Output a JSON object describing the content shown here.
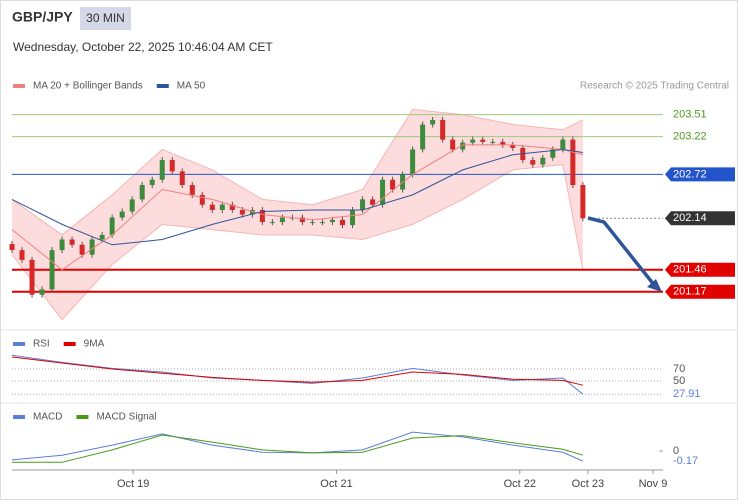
{
  "header": {
    "symbol": "GBP/JPY",
    "timeframe": "30 MIN",
    "datetime": "Wednesday, October 22, 2025 10:46:04 AM CET",
    "credit": "Research © 2025 Trading Central"
  },
  "chart_data": [
    {
      "type": "candlestick",
      "xlim": [
        0,
        65
      ],
      "ylim": [
        200.69,
        203.77
      ],
      "up_color": "#3d8b3d",
      "down_color": "#d62828",
      "open": [
        201.8,
        201.72,
        201.59,
        201.13,
        201.2,
        201.72,
        201.86,
        201.79,
        201.66,
        201.86,
        201.92,
        202.15,
        202.23,
        202.39,
        202.58,
        202.65,
        202.91,
        202.76,
        202.58,
        202.45,
        202.32,
        202.25,
        202.32,
        202.25,
        202.19,
        202.25,
        202.09,
        202.09,
        202.15,
        202.15,
        202.09,
        202.09,
        202.09,
        202.12,
        202.05,
        202.25,
        202.39,
        202.32,
        202.65,
        202.52,
        202.72,
        203.05,
        203.38,
        203.44,
        203.18,
        203.05,
        203.14,
        203.18,
        203.15,
        203.15,
        203.11,
        203.07,
        202.91,
        202.85,
        202.94,
        203.05,
        203.18,
        202.58
      ],
      "close": [
        201.72,
        201.59,
        201.13,
        201.2,
        201.72,
        201.86,
        201.79,
        201.66,
        201.86,
        201.92,
        202.15,
        202.23,
        202.39,
        202.58,
        202.65,
        202.91,
        202.76,
        202.58,
        202.45,
        202.32,
        202.25,
        202.32,
        202.25,
        202.19,
        202.25,
        202.09,
        202.09,
        202.15,
        202.15,
        202.09,
        202.09,
        202.09,
        202.12,
        202.05,
        202.25,
        202.39,
        202.32,
        202.65,
        202.52,
        202.72,
        203.05,
        203.38,
        203.44,
        203.18,
        203.05,
        203.14,
        203.18,
        203.15,
        203.15,
        203.11,
        203.07,
        202.91,
        202.85,
        202.94,
        203.05,
        203.18,
        202.58,
        202.14
      ],
      "series": [
        {
          "name": "MA 20 + Bollinger Bands",
          "color": "#f08080",
          "x": [
            0,
            5,
            10,
            15,
            20,
            25,
            30,
            35,
            40,
            45,
            50,
            55,
            57
          ],
          "values": [
            201.99,
            201.46,
            201.92,
            202.52,
            202.39,
            202.19,
            202.12,
            202.19,
            202.72,
            203.11,
            203.11,
            203.05,
            202.98
          ],
          "upper": [
            202.39,
            201.92,
            202.45,
            203.05,
            202.78,
            202.39,
            202.32,
            202.52,
            203.58,
            203.51,
            203.38,
            203.31,
            203.44
          ],
          "lower": [
            201.66,
            200.8,
            201.53,
            202.06,
            201.99,
            201.92,
            201.92,
            201.86,
            202.06,
            202.39,
            202.78,
            202.85,
            201.46
          ]
        },
        {
          "name": "MA 50",
          "color": "#2e5597",
          "x": [
            0,
            5,
            10,
            15,
            20,
            25,
            30,
            35,
            40,
            45,
            50,
            55,
            57
          ],
          "values": [
            202.39,
            202.06,
            201.79,
            201.86,
            202.06,
            202.23,
            202.25,
            202.25,
            202.45,
            202.78,
            202.98,
            203.05,
            203.01
          ]
        }
      ],
      "levels": [
        {
          "value": 203.51,
          "color": "#9ccc7a",
          "box": false
        },
        {
          "value": 203.22,
          "color": "#9ccc7a",
          "box": false
        },
        {
          "value": 202.72,
          "color": "#2255cc",
          "box": true
        },
        {
          "value": 202.14,
          "color": "#333333",
          "box": true,
          "style": "dotted"
        },
        {
          "value": 201.46,
          "color": "#e00000",
          "box": true
        },
        {
          "value": 201.17,
          "color": "#e00000",
          "box": true
        }
      ]
    },
    {
      "type": "line",
      "xlim": [
        0,
        65
      ],
      "ylim": [
        20,
        110
      ],
      "yticks": [
        70,
        50,
        27.91
      ],
      "series": [
        {
          "name": "RSI",
          "color": "#5b7fd6",
          "x": [
            0,
            5,
            10,
            15,
            20,
            25,
            30,
            35,
            40,
            45,
            50,
            55,
            57
          ],
          "values": [
            93,
            81,
            71,
            65,
            55,
            51,
            46,
            55,
            71,
            60,
            51,
            55,
            28
          ]
        },
        {
          "name": "9MA",
          "color": "#e00000",
          "x": [
            0,
            5,
            10,
            15,
            20,
            25,
            30,
            35,
            40,
            45,
            50,
            55,
            57
          ],
          "values": [
            90,
            80,
            70,
            63,
            56,
            51,
            48,
            51,
            65,
            61,
            53,
            51,
            43
          ]
        }
      ]
    },
    {
      "type": "line",
      "xlim": [
        0,
        65
      ],
      "ylim": [
        -0.32,
        0.44
      ],
      "yticks": [
        0,
        -0.17
      ],
      "xticks": [
        {
          "value": 12.1,
          "label": "Oct 19"
        },
        {
          "value": 32.4,
          "label": "Oct 21"
        },
        {
          "value": 50.7,
          "label": "Oct 22"
        },
        {
          "value": 57.5,
          "label": "Oct 23"
        },
        {
          "value": 64,
          "label": "Nov 9"
        }
      ],
      "series": [
        {
          "name": "MACD",
          "color": "#5b7fd6",
          "x": [
            0,
            5,
            10,
            15,
            20,
            25,
            30,
            35,
            40,
            45,
            50,
            55,
            57
          ],
          "values": [
            -0.15,
            -0.07,
            0.1,
            0.29,
            0.1,
            -0.02,
            -0.03,
            0.02,
            0.32,
            0.24,
            0.1,
            -0.02,
            -0.17
          ]
        },
        {
          "name": "MACD Signal",
          "color": "#4a9a1a",
          "x": [
            0,
            5,
            10,
            15,
            20,
            25,
            30,
            35,
            40,
            45,
            50,
            55,
            57
          ],
          "values": [
            -0.19,
            -0.19,
            0.02,
            0.27,
            0.15,
            0.02,
            -0.03,
            -0.02,
            0.22,
            0.26,
            0.14,
            0.03,
            -0.07
          ]
        }
      ]
    }
  ]
}
